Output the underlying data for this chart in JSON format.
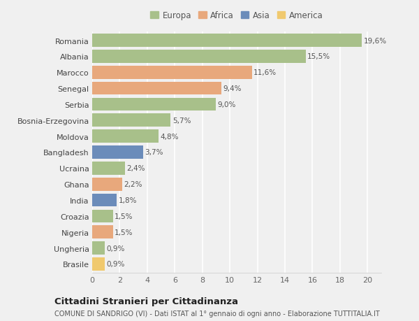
{
  "countries": [
    "Romania",
    "Albania",
    "Marocco",
    "Senegal",
    "Serbia",
    "Bosnia-Erzegovina",
    "Moldova",
    "Bangladesh",
    "Ucraina",
    "Ghana",
    "India",
    "Croazia",
    "Nigeria",
    "Ungheria",
    "Brasile"
  ],
  "values": [
    19.6,
    15.5,
    11.6,
    9.4,
    9.0,
    5.7,
    4.8,
    3.7,
    2.4,
    2.2,
    1.8,
    1.5,
    1.5,
    0.9,
    0.9
  ],
  "labels": [
    "19,6%",
    "15,5%",
    "11,6%",
    "9,4%",
    "9,0%",
    "5,7%",
    "4,8%",
    "3,7%",
    "2,4%",
    "2,2%",
    "1,8%",
    "1,5%",
    "1,5%",
    "0,9%",
    "0,9%"
  ],
  "continents": [
    "Europa",
    "Europa",
    "Africa",
    "Africa",
    "Europa",
    "Europa",
    "Europa",
    "Asia",
    "Europa",
    "Africa",
    "Asia",
    "Europa",
    "Africa",
    "Europa",
    "America"
  ],
  "colors": {
    "Europa": "#a8c08a",
    "Africa": "#e8a87c",
    "Asia": "#6b8cba",
    "America": "#f0c96e"
  },
  "legend_order": [
    "Europa",
    "Africa",
    "Asia",
    "America"
  ],
  "legend_colors": [
    "#a8c08a",
    "#e8a87c",
    "#6b8cba",
    "#f0c96e"
  ],
  "xlim": [
    0,
    21
  ],
  "xticks": [
    0,
    2,
    4,
    6,
    8,
    10,
    12,
    14,
    16,
    18,
    20
  ],
  "title": "Cittadini Stranieri per Cittadinanza",
  "subtitle": "COMUNE DI SANDRIGO (VI) - Dati ISTAT al 1° gennaio di ogni anno - Elaborazione TUTTITALIA.IT",
  "bg_color": "#f0f0f0",
  "plot_bg_color": "#f0f0f0",
  "grid_color": "#ffffff",
  "bar_height": 0.82,
  "label_fontsize": 7.5,
  "tick_fontsize": 8.0,
  "title_fontsize": 9.5,
  "subtitle_fontsize": 7.0,
  "legend_fontsize": 8.5
}
